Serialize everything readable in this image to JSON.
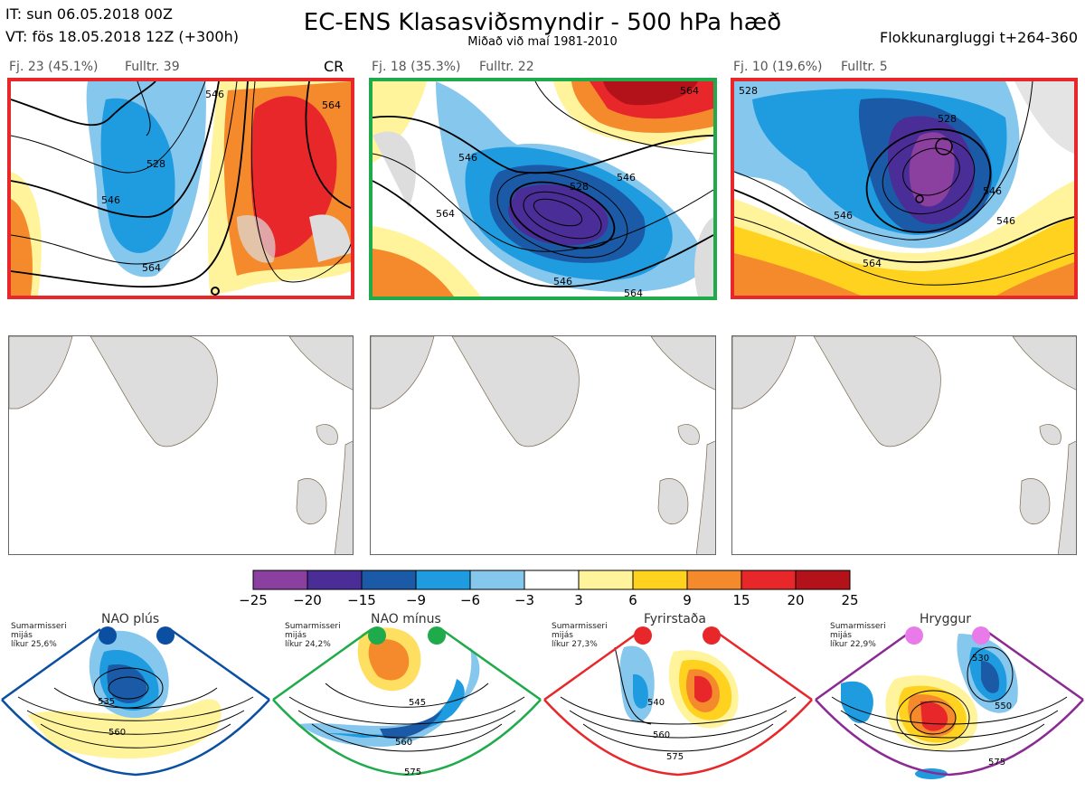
{
  "header": {
    "init_time": "IT: sun 06.05.2018 00Z",
    "valid_time": "VT: fös 18.05.2018 12Z  (+300h)",
    "title": "EC-ENS Klasasviðsmyndir - 500 hPa hæð",
    "subtitle": "Miðað við maí 1981-2010",
    "window": "Flokkunargluggi t+264-360"
  },
  "clusters": [
    {
      "count_label": "Fj. 23 (45.1%)",
      "rep_label": "Fulltr. 39",
      "tag": "CR",
      "border": "#e8272a",
      "contours": [
        "528",
        "546",
        "564",
        "546",
        "564"
      ]
    },
    {
      "count_label": "Fj. 18 (35.3%)",
      "rep_label": "Fulltr. 22",
      "tag": "",
      "border": "#1faa4b",
      "contours": [
        "564",
        "546",
        "564",
        "546",
        "528",
        "546",
        "564"
      ]
    },
    {
      "count_label": "Fj. 10 (19.6%)",
      "rep_label": "Fulltr. 5",
      "tag": "",
      "border": "#e8272a",
      "contours": [
        "528",
        "546",
        "546",
        "564",
        "546",
        "528"
      ]
    }
  ],
  "colorbar": {
    "ticks": [
      "−25",
      "−20",
      "−15",
      "−9",
      "−6",
      "−3",
      "3",
      "6",
      "9",
      "15",
      "20",
      "25"
    ],
    "colors": [
      "#8b3f9e",
      "#4a2d96",
      "#1a5aa6",
      "#1f9be0",
      "#86c7ee",
      "#ffffff",
      "#fff39c",
      "#ffd21f",
      "#f58a2c",
      "#e8272a",
      "#b3121a"
    ]
  },
  "regimes": [
    {
      "name": "NAO plús",
      "note": [
        "Sumarmisseri",
        "mijás",
        "líkur 25,6%"
      ],
      "color": "#0a4fa2",
      "contours": [
        "535",
        "560"
      ]
    },
    {
      "name": "NAO mínus",
      "note": [
        "Sumarmisseri",
        "mijás",
        "líkur 24,2%"
      ],
      "color": "#1faa4b",
      "contours": [
        "545",
        "560",
        "575"
      ]
    },
    {
      "name": "Fyrirstaða",
      "note": [
        "Sumarmisseri",
        "mijás",
        "líkur 27,3%"
      ],
      "color": "#e8272a",
      "contours": [
        "540",
        "560",
        "575"
      ]
    },
    {
      "name": "Hryggur",
      "note": [
        "Sumarmisseri",
        "mijás",
        "líkur 22,9%"
      ],
      "color": "#8b2a93",
      "contours": [
        "530",
        "550",
        "575"
      ]
    }
  ]
}
